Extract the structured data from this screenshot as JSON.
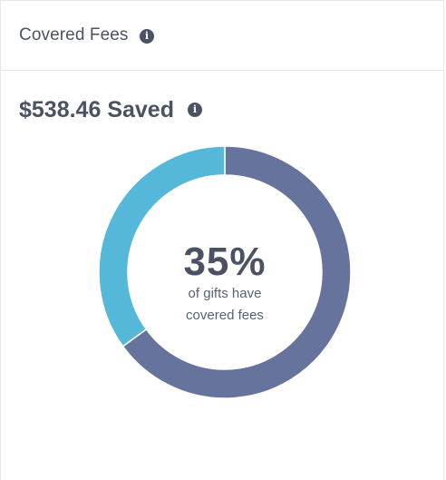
{
  "header": {
    "title": "Covered Fees",
    "info_icon": "info-icon"
  },
  "summary": {
    "saved_label": "$538.46 Saved",
    "info_icon": "info-icon"
  },
  "donut": {
    "percent_label": "35%",
    "caption_line1": "of gifts have",
    "caption_line2": "covered fees",
    "covered_fraction": 0.35,
    "colors": {
      "covered": "#56b8d8",
      "not_covered": "#66739d"
    }
  }
}
